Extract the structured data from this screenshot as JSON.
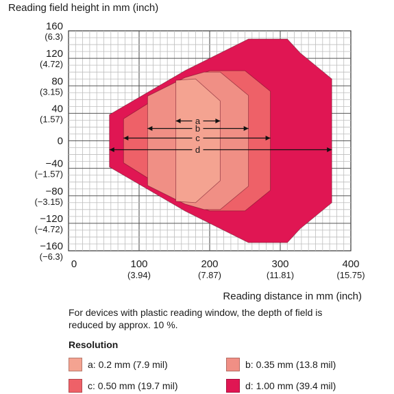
{
  "chart_data": {
    "type": "area",
    "ylabel": "Reading field height in mm (inch)",
    "xlabel": "Reading distance in mm (inch)",
    "xlim": [
      0,
      400
    ],
    "ylim": [
      -160,
      160
    ],
    "grid": true,
    "x_ticks": [
      {
        "value": 0,
        "label": "0",
        "sub": ""
      },
      {
        "value": 100,
        "label": "100",
        "sub": "(3.94)"
      },
      {
        "value": 200,
        "label": "200",
        "sub": "(7.87)"
      },
      {
        "value": 300,
        "label": "300",
        "sub": "(11.81)"
      },
      {
        "value": 400,
        "label": "400",
        "sub": "(15.75)"
      }
    ],
    "y_ticks": [
      {
        "value": 160,
        "label": "160",
        "sub": "(6.3)"
      },
      {
        "value": 120,
        "label": "120",
        "sub": "(4.72)"
      },
      {
        "value": 80,
        "label": "80",
        "sub": "(3.15)"
      },
      {
        "value": 40,
        "label": "40",
        "sub": "(1.57)"
      },
      {
        "value": 0,
        "label": "0",
        "sub": ""
      },
      {
        "value": -40,
        "label": "−40",
        "sub": "(−1.57)"
      },
      {
        "value": -80,
        "label": "−80",
        "sub": "(−3.15)"
      },
      {
        "value": -120,
        "label": "−120",
        "sub": "(−4.72)"
      },
      {
        "value": -160,
        "label": "−160",
        "sub": "(−6.3)"
      }
    ],
    "series": [
      {
        "name": "d: 1.00 mm (39.4 mil)",
        "letter": "d",
        "color": "#e01653",
        "range": [
          58,
          373
        ],
        "outline": [
          [
            58,
            -38
          ],
          [
            58,
            38
          ],
          [
            165,
            102
          ],
          [
            255,
            148
          ],
          [
            310,
            148
          ],
          [
            328,
            128
          ],
          [
            373,
            90
          ],
          [
            373,
            -90
          ],
          [
            328,
            -128
          ],
          [
            310,
            -148
          ],
          [
            255,
            -148
          ],
          [
            165,
            -102
          ],
          [
            58,
            -38
          ]
        ]
      },
      {
        "name": "c: 0.50 mm (19.7 mil)",
        "letter": "c",
        "color": "#ee6168",
        "range": [
          78,
          286
        ],
        "outline": [
          [
            78,
            -32
          ],
          [
            78,
            32
          ],
          [
            165,
            88
          ],
          [
            200,
            102
          ],
          [
            250,
            102
          ],
          [
            286,
            72
          ],
          [
            286,
            -72
          ],
          [
            250,
            -102
          ],
          [
            200,
            -102
          ],
          [
            165,
            -88
          ],
          [
            78,
            -32
          ]
        ]
      },
      {
        "name": "b: 0.35 mm (13.8 mil)",
        "letter": "b",
        "color": "#f08f85",
        "range": [
          112,
          255
        ],
        "outline": [
          [
            112,
            -65
          ],
          [
            112,
            65
          ],
          [
            165,
            92
          ],
          [
            192,
            100
          ],
          [
            215,
            100
          ],
          [
            255,
            66
          ],
          [
            255,
            -66
          ],
          [
            215,
            -100
          ],
          [
            192,
            -100
          ],
          [
            165,
            -92
          ],
          [
            112,
            -65
          ]
        ]
      },
      {
        "name": "a: 0.2 mm (7.9 mil)",
        "letter": "a",
        "color": "#f4a391",
        "range": [
          152,
          215
        ],
        "outline": [
          [
            152,
            -88
          ],
          [
            152,
            88
          ],
          [
            180,
            90
          ],
          [
            215,
            58
          ],
          [
            215,
            -58
          ],
          [
            180,
            -90
          ],
          [
            152,
            -88
          ]
        ]
      }
    ]
  },
  "note": "For devices with plastic reading window, the depth of field is reduced by approx. 10 %.",
  "legend": {
    "title": "Resolution",
    "items": [
      {
        "label": "a: 0.2 mm (7.9 mil)",
        "color": "#f4a391"
      },
      {
        "label": "b: 0.35 mm (13.8 mil)",
        "color": "#f08f85"
      },
      {
        "label": "c: 0.50 mm (19.7 mil)",
        "color": "#ee6168"
      },
      {
        "label": "d: 1.00 mm (39.4 mil)",
        "color": "#e01653"
      }
    ]
  }
}
